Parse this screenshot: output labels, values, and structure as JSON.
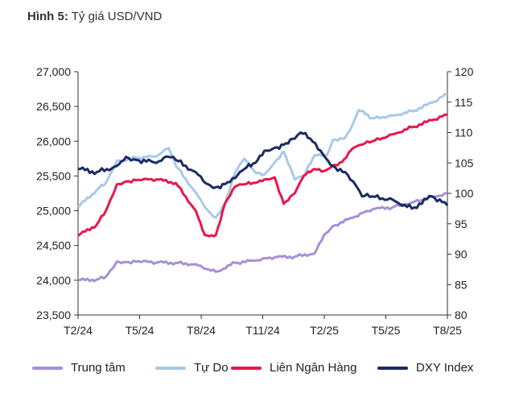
{
  "header": {
    "figure_label": "Hình 5:",
    "figure_title": "Tỷ giá USD/VND"
  },
  "chart_data": {
    "type": "line",
    "x_ticks": [
      "T2/24",
      "T5/24",
      "T8/24",
      "T11/24",
      "T2/25",
      "T5/25",
      "T8/25"
    ],
    "y_left_ticks": [
      "23,500",
      "24,000",
      "24,500",
      "25,000",
      "25,500",
      "26,000",
      "26,500",
      "27,000"
    ],
    "y_right_ticks": [
      "80",
      "85",
      "90",
      "95",
      "100",
      "105",
      "110",
      "115",
      "120"
    ],
    "ylim_left": [
      23500,
      27000
    ],
    "ylim_right": [
      80,
      120
    ],
    "grid": false,
    "legend_position": "bottom",
    "series": [
      {
        "name": "Trung tâm",
        "axis": "left",
        "color": "#a78fd8",
        "x": [
          "2024-02-01",
          "2024-03-01",
          "2024-03-15",
          "2024-04-01",
          "2024-04-15",
          "2024-05-01",
          "2024-06-01",
          "2024-07-01",
          "2024-08-01",
          "2024-09-01",
          "2024-10-01",
          "2024-11-01",
          "2024-12-01",
          "2025-01-01",
          "2025-02-01",
          "2025-02-15",
          "2025-03-01",
          "2025-04-01",
          "2025-05-01",
          "2025-06-01",
          "2025-07-01",
          "2025-08-01",
          "2025-08-25"
        ],
        "values": [
          24000,
          24010,
          24050,
          24270,
          24260,
          24270,
          24255,
          24250,
          24230,
          24120,
          24250,
          24280,
          24330,
          24340,
          24390,
          24650,
          24780,
          24900,
          25020,
          25050,
          25120,
          25200,
          25250
        ]
      },
      {
        "name": "Tự Do",
        "axis": "left",
        "color": "#a9c9e8",
        "x": [
          "2024-02-01",
          "2024-03-01",
          "2024-03-15",
          "2024-04-01",
          "2024-05-01",
          "2024-06-01",
          "2024-06-20",
          "2024-07-01",
          "2024-08-01",
          "2024-08-20",
          "2024-09-01",
          "2024-09-15",
          "2024-10-01",
          "2024-10-15",
          "2024-11-01",
          "2024-11-15",
          "2024-12-01",
          "2024-12-15",
          "2025-01-01",
          "2025-01-15",
          "2025-02-01",
          "2025-02-20",
          "2025-03-01",
          "2025-03-20",
          "2025-04-01",
          "2025-04-10",
          "2025-05-01",
          "2025-06-01",
          "2025-07-01",
          "2025-08-01",
          "2025-08-25"
        ],
        "values": [
          25050,
          25300,
          25400,
          25720,
          25760,
          25780,
          25900,
          25650,
          25260,
          25000,
          24900,
          25100,
          25550,
          25750,
          25550,
          25520,
          25700,
          25850,
          25450,
          25500,
          25800,
          25800,
          26020,
          26050,
          26250,
          26450,
          26330,
          26370,
          26430,
          26550,
          26680
        ]
      },
      {
        "name": "Liên Ngân Hàng",
        "axis": "left",
        "color": "#e8174a",
        "x": [
          "2024-02-01",
          "2024-03-01",
          "2024-03-15",
          "2024-04-01",
          "2024-04-15",
          "2024-05-01",
          "2024-06-01",
          "2024-07-01",
          "2024-08-01",
          "2024-08-15",
          "2024-09-01",
          "2024-09-15",
          "2024-10-01",
          "2024-10-15",
          "2024-11-01",
          "2024-11-15",
          "2024-12-01",
          "2024-12-15",
          "2025-01-01",
          "2025-01-15",
          "2025-02-01",
          "2025-02-15",
          "2025-03-01",
          "2025-03-15",
          "2025-04-01",
          "2025-04-15",
          "2025-05-01",
          "2025-06-01",
          "2025-07-01",
          "2025-08-01",
          "2025-08-25"
        ],
        "values": [
          24640,
          24800,
          25000,
          25380,
          25420,
          25440,
          25450,
          25400,
          25000,
          24650,
          24650,
          25100,
          25350,
          25380,
          25400,
          25450,
          25480,
          25100,
          25250,
          25500,
          25600,
          25570,
          25650,
          25700,
          25900,
          25950,
          26000,
          26100,
          26200,
          26300,
          26380
        ]
      },
      {
        "name": "DXY Index",
        "axis": "right",
        "color": "#1b2a63",
        "x": [
          "2024-02-01",
          "2024-03-01",
          "2024-04-01",
          "2024-04-15",
          "2024-05-01",
          "2024-06-01",
          "2024-06-20",
          "2024-07-01",
          "2024-08-01",
          "2024-08-20",
          "2024-09-01",
          "2024-09-15",
          "2024-10-01",
          "2024-10-15",
          "2024-11-01",
          "2024-11-15",
          "2024-12-01",
          "2024-12-15",
          "2025-01-01",
          "2025-01-10",
          "2025-01-25",
          "2025-02-10",
          "2025-03-01",
          "2025-03-20",
          "2025-04-01",
          "2025-04-15",
          "2025-05-01",
          "2025-06-01",
          "2025-07-01",
          "2025-08-01",
          "2025-08-25"
        ],
        "values": [
          104,
          103.5,
          104.5,
          106,
          105.5,
          105,
          106,
          105.5,
          103.5,
          101.5,
          101,
          101.5,
          102.5,
          104,
          105,
          107,
          107.5,
          108,
          109,
          110,
          109,
          107,
          104.5,
          103.5,
          102,
          99.5,
          99.5,
          99,
          97.5,
          99.5,
          98
        ]
      }
    ]
  }
}
